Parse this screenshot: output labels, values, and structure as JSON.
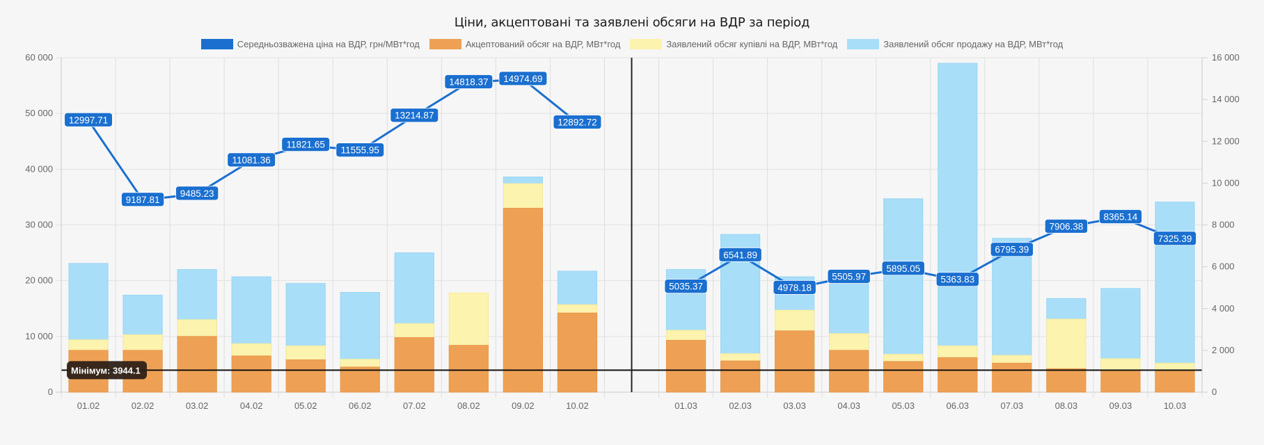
{
  "chart_data": {
    "type": "bar",
    "title": "Ціни, акцептовані та заявлені обсяги на ВДР за період",
    "categories": [
      "01.02",
      "02.02",
      "03.02",
      "04.02",
      "05.02",
      "06.02",
      "07.02",
      "08.02",
      "09.02",
      "10.02",
      "",
      "01.03",
      "02.03",
      "03.03",
      "04.03",
      "05.03",
      "06.03",
      "07.03",
      "08.03",
      "09.03",
      "10.03"
    ],
    "y_left": {
      "ylim": [
        0,
        60000
      ],
      "ticks": [
        "0",
        "10 000",
        "20 000",
        "30 000",
        "40 000",
        "50 000",
        "60 000"
      ],
      "tick_values": [
        0,
        10000,
        20000,
        30000,
        40000,
        50000,
        60000
      ]
    },
    "y_right": {
      "ylim": [
        0,
        16000
      ],
      "ticks": [
        "0",
        "2 000",
        "4 000",
        "6 000",
        "8 000",
        "10 000",
        "12 000",
        "14 000",
        "16 000"
      ],
      "tick_values": [
        0,
        2000,
        4000,
        6000,
        8000,
        10000,
        12000,
        14000,
        16000
      ]
    },
    "grid": true,
    "legend_position": "top",
    "series": [
      {
        "name": "Середньозважена ціна на ВДР, грн/МВт*год",
        "type": "line",
        "axis": "right",
        "color": "#1a6fcf",
        "values": [
          12997.71,
          9187.81,
          9485.23,
          11081.36,
          11821.65,
          11555.95,
          13214.87,
          14818.37,
          14974.69,
          12892.72,
          null,
          5035.37,
          6541.89,
          4978.18,
          5505.97,
          5895.05,
          5363.83,
          6795.39,
          7906.38,
          8365.14,
          7325.39
        ],
        "labels": [
          "12997.71",
          "9187.81",
          "9485.23",
          "11081.36",
          "11821.65",
          "11555.95",
          "13214.87",
          "14818.37",
          "14974.69",
          "12892.72",
          null,
          "5035.37",
          "6541.89",
          "4978.18",
          "5505.97",
          "5895.05",
          "5363.83",
          "6795.39",
          "7906.38",
          "8365.14",
          "7325.39"
        ]
      },
      {
        "name": "Акцептований обсяг на ВДР, МВт*год",
        "type": "bar",
        "axis": "left",
        "color": "#eea155",
        "values": [
          7500,
          7500,
          10000,
          6500,
          5800,
          4500,
          9800,
          8400,
          33000,
          14200,
          null,
          9300,
          5600,
          11000,
          7500,
          5500,
          6200,
          5200,
          4200,
          3944.1,
          3944.1
        ]
      },
      {
        "name": "Заявлений обсяг купівлі на ВДР, МВт*год",
        "type": "bar",
        "axis": "left",
        "color": "#fbf3ae",
        "values": [
          9400,
          10300,
          13000,
          8700,
          8300,
          5900,
          12300,
          17800,
          37400,
          15700,
          null,
          11100,
          6900,
          14700,
          10500,
          6800,
          8300,
          6600,
          13100,
          6000,
          5200
        ]
      },
      {
        "name": "Заявлений обсяг продажу на ВДР, МВт*год",
        "type": "bar",
        "axis": "left",
        "color": "#a9def8",
        "values": [
          23100,
          17400,
          22000,
          20700,
          19500,
          17900,
          25000,
          0,
          38600,
          21700,
          null,
          22000,
          28300,
          20700,
          20400,
          34700,
          59000,
          27600,
          16800,
          18600,
          34100
        ]
      }
    ],
    "annotations": [
      {
        "type": "hline",
        "axis": "left",
        "value": 3944.1,
        "label": "Мінімум: 3944.1",
        "color": "#111111"
      },
      {
        "type": "vline",
        "category_index": 10,
        "color": "#222222"
      }
    ]
  }
}
